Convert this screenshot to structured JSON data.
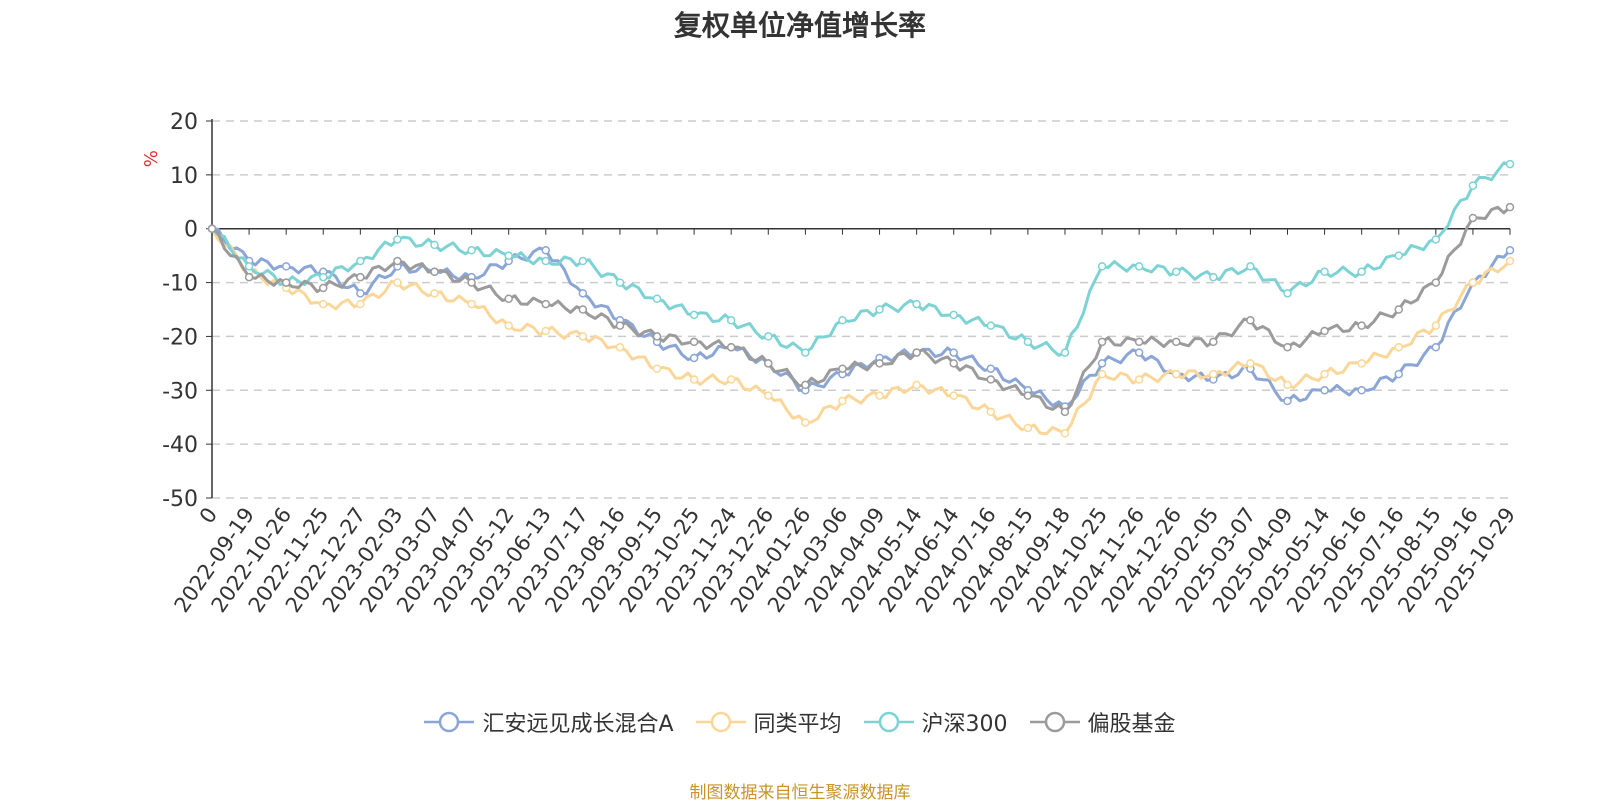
{
  "title": "复权单位净值增长率",
  "source": "制图数据来自恒生聚源数据库",
  "chart_data": {
    "type": "line",
    "title": "复权单位净值增长率",
    "ylabel": "%",
    "ylim": [
      -50,
      20
    ],
    "yticks": [
      20,
      10,
      0,
      -10,
      -20,
      -30,
      -40,
      -50
    ],
    "grid": true,
    "legend_position": "bottom",
    "x": [
      "0",
      "2022-09-19",
      "2022-10-26",
      "2022-11-25",
      "2022-12-27",
      "2023-02-03",
      "2023-03-07",
      "2023-04-07",
      "2023-05-12",
      "2023-06-13",
      "2023-07-17",
      "2023-08-16",
      "2023-09-15",
      "2023-10-25",
      "2023-11-24",
      "2023-12-26",
      "2024-01-26",
      "2024-03-06",
      "2024-04-09",
      "2024-05-14",
      "2024-06-14",
      "2024-07-16",
      "2024-08-15",
      "2024-09-18",
      "2024-10-25",
      "2024-11-26",
      "2024-12-26",
      "2025-02-05",
      "2025-03-07",
      "2025-04-09",
      "2025-05-14",
      "2025-06-16",
      "2025-07-16",
      "2025-08-15",
      "2025-09-16",
      "2025-10-29"
    ],
    "series": [
      {
        "name": "汇安远见成长混合A",
        "color": "#8ba6d6",
        "values": [
          0,
          -6,
          -7,
          -8,
          -12,
          -7,
          -8,
          -9,
          -6,
          -4,
          -12,
          -17,
          -21,
          -24,
          -22,
          -25,
          -30,
          -27,
          -24,
          -23,
          -23,
          -26,
          -30,
          -33,
          -25,
          -23,
          -27,
          -28,
          -26,
          -32,
          -30,
          -30,
          -27,
          -22,
          -10,
          -4
        ]
      },
      {
        "name": "同类平均",
        "color": "#fad798",
        "values": [
          0,
          -8,
          -11,
          -14,
          -14,
          -10,
          -12,
          -14,
          -18,
          -19,
          -20,
          -22,
          -26,
          -28,
          -28,
          -31,
          -36,
          -32,
          -31,
          -29,
          -31,
          -34,
          -37,
          -38,
          -27,
          -28,
          -27,
          -27,
          -25,
          -29,
          -27,
          -25,
          -22,
          -18,
          -10,
          -6
        ]
      },
      {
        "name": "沪深300",
        "color": "#7dd3d4",
        "values": [
          0,
          -7,
          -10,
          -9,
          -6,
          -2,
          -3,
          -4,
          -5,
          -6,
          -6,
          -10,
          -13,
          -16,
          -17,
          -20,
          -23,
          -17,
          -15,
          -14,
          -16,
          -18,
          -21,
          -23,
          -7,
          -7,
          -8,
          -9,
          -7,
          -12,
          -8,
          -8,
          -5,
          -2,
          8,
          12
        ]
      },
      {
        "name": "偏股基金",
        "color": "#9b9b9b",
        "values": [
          0,
          -9,
          -10,
          -11,
          -9,
          -6,
          -8,
          -10,
          -13,
          -14,
          -15,
          -18,
          -20,
          -21,
          -22,
          -25,
          -29,
          -26,
          -25,
          -23,
          -25,
          -28,
          -31,
          -34,
          -21,
          -21,
          -21,
          -21,
          -17,
          -22,
          -19,
          -18,
          -15,
          -10,
          2,
          4
        ]
      }
    ]
  }
}
